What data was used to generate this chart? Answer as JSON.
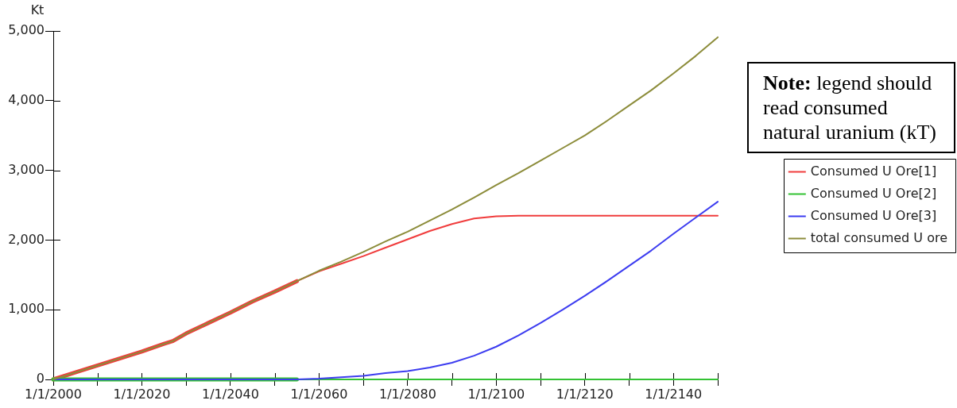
{
  "chart_data": {
    "type": "line",
    "ylabel": "Kt",
    "annotations": [
      "Note: legend should read consumed natural uranium (kT)"
    ],
    "x": [
      "2000-01-01",
      "2005-01-01",
      "2010-01-01",
      "2015-01-01",
      "2020-01-01",
      "2025-01-01",
      "2027-01-01",
      "2030-01-01",
      "2035-01-01",
      "2040-01-01",
      "2045-01-01",
      "2050-01-01",
      "2055-01-01",
      "2060-01-01",
      "2065-01-01",
      "2070-01-01",
      "2075-01-01",
      "2080-01-01",
      "2085-01-01",
      "2090-01-01",
      "2095-01-01",
      "2100-01-01",
      "2105-01-01",
      "2110-01-01",
      "2115-01-01",
      "2120-01-01",
      "2125-01-01",
      "2130-01-01",
      "2135-01-01",
      "2140-01-01",
      "2145-01-01",
      "2150-01-01"
    ],
    "series": [
      {
        "name": "Consumed U Ore[1]",
        "color": "#f03c3c",
        "values": [
          0,
          100,
          200,
          300,
          400,
          510,
          550,
          660,
          810,
          960,
          1120,
          1260,
          1410,
          1550,
          1660,
          1770,
          1890,
          2010,
          2130,
          2230,
          2310,
          2340,
          2350,
          2350,
          2350,
          2350,
          2350,
          2350,
          2350,
          2350,
          2350,
          2350
        ]
      },
      {
        "name": "Consumed U Ore[2]",
        "color": "#33c233",
        "values": [
          0,
          0,
          0,
          0,
          0,
          0,
          0,
          0,
          0,
          0,
          0,
          0,
          0,
          0,
          0,
          0,
          0,
          0,
          0,
          0,
          0,
          0,
          0,
          0,
          0,
          0,
          0,
          0,
          0,
          0,
          0,
          0
        ]
      },
      {
        "name": "Consumed U Ore[3]",
        "color": "#3c3cf0",
        "values": [
          0,
          0,
          0,
          0,
          0,
          0,
          0,
          0,
          0,
          0,
          0,
          0,
          0,
          10,
          30,
          50,
          90,
          120,
          170,
          240,
          340,
          470,
          630,
          810,
          1000,
          1200,
          1410,
          1630,
          1850,
          2090,
          2320,
          2550
        ]
      },
      {
        "name": "total consumed U ore",
        "color": "#8c8c3a",
        "values": [
          0,
          100,
          200,
          300,
          400,
          510,
          550,
          660,
          810,
          960,
          1120,
          1260,
          1410,
          1560,
          1690,
          1830,
          1980,
          2120,
          2280,
          2440,
          2610,
          2790,
          2960,
          3140,
          3320,
          3500,
          3710,
          3930,
          4150,
          4390,
          4640,
          4910
        ]
      }
    ],
    "xlim": [
      "2000-01-01",
      "2150-01-01"
    ],
    "xticks": [
      {
        "value": "2000-01-01",
        "label": "1/1/2000"
      },
      {
        "value": "2010-01-01",
        "label": null
      },
      {
        "value": "2020-01-01",
        "label": "1/1/2020"
      },
      {
        "value": "2030-01-01",
        "label": null
      },
      {
        "value": "2040-01-01",
        "label": "1/1/2040"
      },
      {
        "value": "2050-01-01",
        "label": null
      },
      {
        "value": "2060-01-01",
        "label": "1/1/2060"
      },
      {
        "value": "2070-01-01",
        "label": null
      },
      {
        "value": "2080-01-01",
        "label": "1/1/2080"
      },
      {
        "value": "2090-01-01",
        "label": null
      },
      {
        "value": "2100-01-01",
        "label": "1/1/2100"
      },
      {
        "value": "2110-01-01",
        "label": null
      },
      {
        "value": "2120-01-01",
        "label": "1/1/2120"
      },
      {
        "value": "2130-01-01",
        "label": null
      },
      {
        "value": "2140-01-01",
        "label": "1/1/2140"
      },
      {
        "value": "2150-01-01",
        "label": null
      }
    ],
    "ylim": [
      0,
      5000
    ],
    "yticks": [
      0,
      {
        "value": 1000,
        "label": "1,000"
      },
      {
        "value": 2000,
        "label": "2,000"
      },
      {
        "value": 3000,
        "label": "3,000"
      },
      {
        "value": 4000,
        "label": "4,000"
      },
      {
        "value": 5000,
        "label": "5,000"
      }
    ],
    "legend": "right"
  }
}
